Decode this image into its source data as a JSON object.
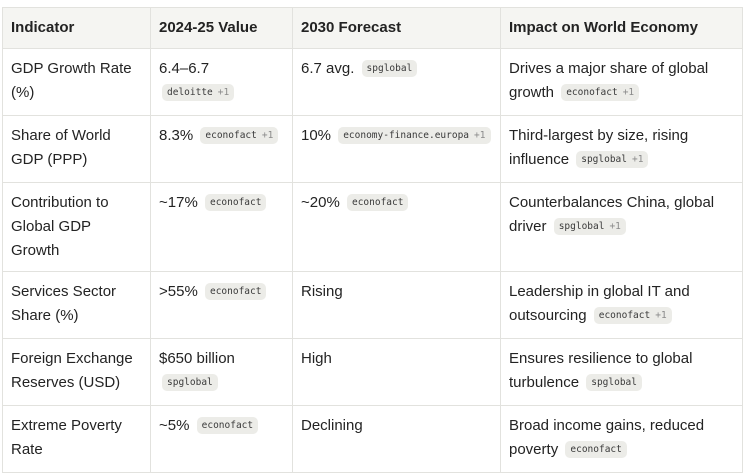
{
  "headers": [
    "Indicator",
    "2024-25 Value",
    "2030 Forecast",
    "Impact on World Economy"
  ],
  "rows": [
    {
      "indicator": "GDP Growth Rate (%)",
      "value": {
        "text": "6.4–6.7",
        "source": "deloitte",
        "more": "+1"
      },
      "forecast": {
        "text": "6.7 avg.",
        "source": "spglobal",
        "more": ""
      },
      "impact": {
        "text": "Drives a major share of global growth",
        "source": "econofact",
        "more": "+1"
      }
    },
    {
      "indicator": "Share of World GDP (PPP)",
      "value": {
        "text": "8.3%",
        "source": "econofact",
        "more": "+1"
      },
      "forecast": {
        "text": "10%",
        "source": "economy-finance.europa",
        "more": "+1"
      },
      "impact": {
        "text": "Third-largest by size, rising influence",
        "source": "spglobal",
        "more": "+1"
      }
    },
    {
      "indicator": "Contribution to Global GDP Growth",
      "value": {
        "text": "~17%",
        "source": "econofact",
        "more": ""
      },
      "forecast": {
        "text": "~20%",
        "source": "econofact",
        "more": ""
      },
      "impact": {
        "text": "Counterbalances China, global driver",
        "source": "spglobal",
        "more": "+1"
      }
    },
    {
      "indicator": "Services Sector Share (%)",
      "value": {
        "text": ">55%",
        "source": "econofact",
        "more": ""
      },
      "forecast": {
        "text": "Rising",
        "source": "",
        "more": ""
      },
      "impact": {
        "text": "Leadership in global IT and outsourcing",
        "source": "econofact",
        "more": "+1"
      }
    },
    {
      "indicator": "Foreign Exchange Reserves (USD)",
      "value": {
        "text": "$650 billion",
        "source": "spglobal",
        "more": ""
      },
      "forecast": {
        "text": "High",
        "source": "",
        "more": ""
      },
      "impact": {
        "text": "Ensures resilience to global turbulence",
        "source": "spglobal",
        "more": ""
      }
    },
    {
      "indicator": "Extreme Poverty Rate",
      "value": {
        "text": "~5%",
        "source": "econofact",
        "more": ""
      },
      "forecast": {
        "text": "Declining",
        "source": "",
        "more": ""
      },
      "impact": {
        "text": "Broad income gains, reduced poverty",
        "source": "econofact",
        "more": ""
      }
    }
  ]
}
